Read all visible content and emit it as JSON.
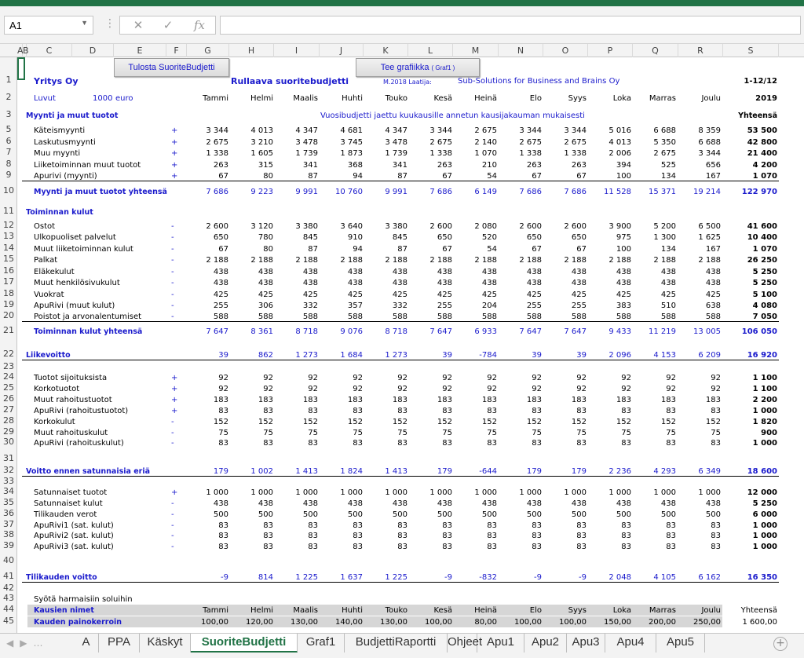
{
  "namebox": "A1",
  "formula_icons": {
    "cancel": "✕",
    "enter": "✓",
    "fx": "fx"
  },
  "columns": [
    "A",
    "B",
    "C",
    "D",
    "E",
    "F",
    "G",
    "H",
    "I",
    "J",
    "K",
    "L",
    "M",
    "N",
    "O",
    "P",
    "Q",
    "R",
    "S"
  ],
  "buttons": {
    "print": "Tulosta SuoriteBudjetti",
    "chart": "Tee grafiikka",
    "chart_small": "( Graf1 )"
  },
  "header": {
    "company": "Yritys Oy",
    "title": "Rullaava suoritebudjetti",
    "author": "M.2018 Laatija:",
    "author2": "Sub-Solutions for Business and Brains Oy",
    "period": "1-12/12",
    "luvut": "Luvut",
    "unit": "1000",
    "unit2": "euro",
    "year": "2019",
    "note": "Vuosibudjetti jaettu kuukausille annetun kausijakauman mukaisesti",
    "total_label": "Yhteensä"
  },
  "months": [
    "Tammi",
    "Helmi",
    "Maalis",
    "Huhti",
    "Touko",
    "Kesä",
    "Heinä",
    "Elo",
    "Syys",
    "Loka",
    "Marras",
    "Joulu"
  ],
  "rows": [
    {
      "n": "5",
      "label": "Käteismyynti",
      "sign": "+",
      "v": [
        "3 344",
        "4 013",
        "4 347",
        "4 681",
        "4 347",
        "3 344",
        "2 675",
        "3 344",
        "3 344",
        "5 016",
        "6 688",
        "8 359"
      ],
      "t": "53 500"
    },
    {
      "n": "6",
      "label": "Laskutusmyynti",
      "sign": "+",
      "v": [
        "2 675",
        "3 210",
        "3 478",
        "3 745",
        "3 478",
        "2 675",
        "2 140",
        "2 675",
        "2 675",
        "4 013",
        "5 350",
        "6 688"
      ],
      "t": "42 800"
    },
    {
      "n": "7",
      "label": "Muu myynti",
      "sign": "+",
      "v": [
        "1 338",
        "1 605",
        "1 739",
        "1 873",
        "1 739",
        "1 338",
        "1 070",
        "1 338",
        "1 338",
        "2 006",
        "2 675",
        "3 344"
      ],
      "t": "21 400"
    },
    {
      "n": "8",
      "label": "Liiketoiminnan muut tuotot",
      "sign": "+",
      "v": [
        "263",
        "315",
        "341",
        "368",
        "341",
        "263",
        "210",
        "263",
        "263",
        "394",
        "525",
        "656"
      ],
      "t": "4 200"
    },
    {
      "n": "9",
      "label": "Apurivi (myynti)",
      "sign": "+",
      "v": [
        "67",
        "80",
        "87",
        "94",
        "87",
        "67",
        "54",
        "67",
        "67",
        "100",
        "134",
        "167"
      ],
      "t": "1 070"
    },
    {
      "n": "10",
      "label": "Myynti ja muut tuotot yhteensä",
      "sign": "",
      "v": [
        "7 686",
        "9 223",
        "9 991",
        "10 760",
        "9 991",
        "7 686",
        "6 149",
        "7 686",
        "7 686",
        "11 528",
        "15 371",
        "19 214"
      ],
      "t": "122 970",
      "style": "sum"
    },
    {
      "n": "12",
      "label": "Ostot",
      "sign": "-",
      "v": [
        "2 600",
        "3 120",
        "3 380",
        "3 640",
        "3 380",
        "2 600",
        "2 080",
        "2 600",
        "2 600",
        "3 900",
        "5 200",
        "6 500"
      ],
      "t": "41 600"
    },
    {
      "n": "13",
      "label": "Ulkopuoliset palvelut",
      "sign": "-",
      "v": [
        "650",
        "780",
        "845",
        "910",
        "845",
        "650",
        "520",
        "650",
        "650",
        "975",
        "1 300",
        "1 625"
      ],
      "t": "10 400"
    },
    {
      "n": "14",
      "label": "Muut liiketoiminnan kulut",
      "sign": "-",
      "v": [
        "67",
        "80",
        "87",
        "94",
        "87",
        "67",
        "54",
        "67",
        "67",
        "100",
        "134",
        "167"
      ],
      "t": "1 070"
    },
    {
      "n": "15",
      "label": "Palkat",
      "sign": "-",
      "v": [
        "2 188",
        "2 188",
        "2 188",
        "2 188",
        "2 188",
        "2 188",
        "2 188",
        "2 188",
        "2 188",
        "2 188",
        "2 188",
        "2 188"
      ],
      "t": "26 250"
    },
    {
      "n": "16",
      "label": "Eläkekulut",
      "sign": "-",
      "v": [
        "438",
        "438",
        "438",
        "438",
        "438",
        "438",
        "438",
        "438",
        "438",
        "438",
        "438",
        "438"
      ],
      "t": "5 250"
    },
    {
      "n": "17",
      "label": "Muut henkilösivukulut",
      "sign": "-",
      "v": [
        "438",
        "438",
        "438",
        "438",
        "438",
        "438",
        "438",
        "438",
        "438",
        "438",
        "438",
        "438"
      ],
      "t": "5 250"
    },
    {
      "n": "18",
      "label": "Vuokrat",
      "sign": "-",
      "v": [
        "425",
        "425",
        "425",
        "425",
        "425",
        "425",
        "425",
        "425",
        "425",
        "425",
        "425",
        "425"
      ],
      "t": "5 100"
    },
    {
      "n": "19",
      "label": "ApuRivi (muut kulut)",
      "sign": "-",
      "v": [
        "255",
        "306",
        "332",
        "357",
        "332",
        "255",
        "204",
        "255",
        "255",
        "383",
        "510",
        "638"
      ],
      "t": "4 080"
    },
    {
      "n": "20",
      "label": "Poistot ja arvonalentumiset",
      "sign": "-",
      "v": [
        "588",
        "588",
        "588",
        "588",
        "588",
        "588",
        "588",
        "588",
        "588",
        "588",
        "588",
        "588"
      ],
      "t": "7 050"
    },
    {
      "n": "21",
      "label": "Toiminnan kulut yhteensä",
      "sign": "",
      "v": [
        "7 647",
        "8 361",
        "8 718",
        "9 076",
        "8 718",
        "7 647",
        "6 933",
        "7 647",
        "7 647",
        "9 433",
        "11 219",
        "13 005"
      ],
      "t": "106 050",
      "style": "sum2"
    },
    {
      "n": "22",
      "label": "Liikevoitto",
      "sign": "",
      "v": [
        "39",
        "862",
        "1 273",
        "1 684",
        "1 273",
        "39",
        "-784",
        "39",
        "39",
        "2 096",
        "4 153",
        "6 209"
      ],
      "t": "16 920",
      "style": "profit"
    },
    {
      "n": "24",
      "label": "Tuotot sijoituksista",
      "sign": "+",
      "v": [
        "92",
        "92",
        "92",
        "92",
        "92",
        "92",
        "92",
        "92",
        "92",
        "92",
        "92",
        "92"
      ],
      "t": "1 100"
    },
    {
      "n": "25",
      "label": "Korkotuotot",
      "sign": "+",
      "v": [
        "92",
        "92",
        "92",
        "92",
        "92",
        "92",
        "92",
        "92",
        "92",
        "92",
        "92",
        "92"
      ],
      "t": "1 100"
    },
    {
      "n": "26",
      "label": "Muut rahoitustuotot",
      "sign": "+",
      "v": [
        "183",
        "183",
        "183",
        "183",
        "183",
        "183",
        "183",
        "183",
        "183",
        "183",
        "183",
        "183"
      ],
      "t": "2 200"
    },
    {
      "n": "27",
      "label": "ApuRivi (rahoitustuotot)",
      "sign": "+",
      "v": [
        "83",
        "83",
        "83",
        "83",
        "83",
        "83",
        "83",
        "83",
        "83",
        "83",
        "83",
        "83"
      ],
      "t": "1 000"
    },
    {
      "n": "28",
      "label": "Korkokulut",
      "sign": "-",
      "v": [
        "152",
        "152",
        "152",
        "152",
        "152",
        "152",
        "152",
        "152",
        "152",
        "152",
        "152",
        "152"
      ],
      "t": "1 820"
    },
    {
      "n": "29",
      "label": "Muut rahoituskulut",
      "sign": "-",
      "v": [
        "75",
        "75",
        "75",
        "75",
        "75",
        "75",
        "75",
        "75",
        "75",
        "75",
        "75",
        "75"
      ],
      "t": "900"
    },
    {
      "n": "30",
      "label": "ApuRivi (rahoituskulut)",
      "sign": "-",
      "v": [
        "83",
        "83",
        "83",
        "83",
        "83",
        "83",
        "83",
        "83",
        "83",
        "83",
        "83",
        "83"
      ],
      "t": "1 000"
    },
    {
      "n": "32",
      "label": "Voitto ennen satunnaisia eriä",
      "sign": "",
      "v": [
        "179",
        "1 002",
        "1 413",
        "1 824",
        "1 413",
        "179",
        "-644",
        "179",
        "179",
        "2 236",
        "4 293",
        "6 349"
      ],
      "t": "18 600",
      "style": "profit"
    },
    {
      "n": "34",
      "label": "Satunnaiset tuotot",
      "sign": "+",
      "v": [
        "1 000",
        "1 000",
        "1 000",
        "1 000",
        "1 000",
        "1 000",
        "1 000",
        "1 000",
        "1 000",
        "1 000",
        "1 000",
        "1 000"
      ],
      "t": "12 000"
    },
    {
      "n": "35",
      "label": "Satunnaiset kulut",
      "sign": "-",
      "v": [
        "438",
        "438",
        "438",
        "438",
        "438",
        "438",
        "438",
        "438",
        "438",
        "438",
        "438",
        "438"
      ],
      "t": "5 250"
    },
    {
      "n": "36",
      "label": "Tilikauden verot",
      "sign": "-",
      "v": [
        "500",
        "500",
        "500",
        "500",
        "500",
        "500",
        "500",
        "500",
        "500",
        "500",
        "500",
        "500"
      ],
      "t": "6 000"
    },
    {
      "n": "37",
      "label": "ApuRivi1 (sat. kulut)",
      "sign": "-",
      "v": [
        "83",
        "83",
        "83",
        "83",
        "83",
        "83",
        "83",
        "83",
        "83",
        "83",
        "83",
        "83"
      ],
      "t": "1 000"
    },
    {
      "n": "38",
      "label": "ApuRivi2 (sat. kulut)",
      "sign": "-",
      "v": [
        "83",
        "83",
        "83",
        "83",
        "83",
        "83",
        "83",
        "83",
        "83",
        "83",
        "83",
        "83"
      ],
      "t": "1 000"
    },
    {
      "n": "39",
      "label": "ApuRivi3 (sat. kulut)",
      "sign": "-",
      "v": [
        "83",
        "83",
        "83",
        "83",
        "83",
        "83",
        "83",
        "83",
        "83",
        "83",
        "83",
        "83"
      ],
      "t": "1 000"
    },
    {
      "n": "41",
      "label": "Tilikauden voitto",
      "sign": "",
      "v": [
        "-9",
        "814",
        "1 225",
        "1 637",
        "1 225",
        "-9",
        "-832",
        "-9",
        "-9",
        "2 048",
        "4 105",
        "6 162"
      ],
      "t": "16 350",
      "style": "profit"
    }
  ],
  "sections": {
    "r3": "Myynti ja muut tuotot",
    "r11": "Toiminnan kulut"
  },
  "footer": {
    "prompt": "Syötä harmaisiin soluihin",
    "names_label": "Kausien nimet",
    "weights_label": "Kauden painokerroin",
    "weights": [
      "100,00",
      "120,00",
      "130,00",
      "140,00",
      "130,00",
      "100,00",
      "80,00",
      "100,00",
      "100,00",
      "150,00",
      "200,00",
      "250,00"
    ],
    "weights_total": "1 600,00",
    "total_label": "Yhteensä"
  },
  "row_numbers": [
    "1",
    "2",
    "3",
    "5",
    "6",
    "7",
    "8",
    "9",
    "10",
    "11",
    "12",
    "13",
    "14",
    "15",
    "16",
    "17",
    "18",
    "19",
    "20",
    "21",
    "22",
    "23",
    "24",
    "25",
    "26",
    "27",
    "28",
    "29",
    "30",
    "31",
    "32",
    "33",
    "34",
    "35",
    "36",
    "37",
    "38",
    "39",
    "40",
    "41",
    "42",
    "43",
    "44",
    "45"
  ],
  "tabs": [
    "A",
    "PPA",
    "Käskyt",
    "SuoriteBudjetti",
    "Graf1",
    "BudjettiRaportti",
    "Ohjeet",
    "Apu1",
    "Apu2",
    "Apu3",
    "Apu4",
    "Apu5"
  ],
  "active_tab": "SuoriteBudjetti"
}
